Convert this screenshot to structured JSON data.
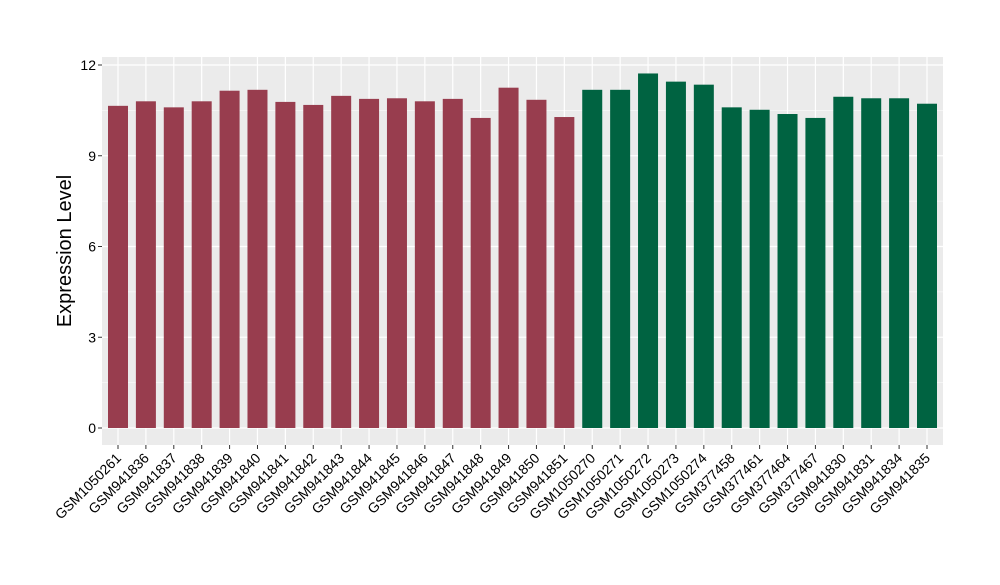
{
  "chart_data": {
    "type": "bar",
    "title": "",
    "xlabel": "",
    "ylabel": "Expression Level",
    "ylim": [
      0,
      12.3
    ],
    "yticks": [
      0,
      3,
      6,
      9,
      12
    ],
    "grid": true,
    "legend": "none",
    "colors": {
      "panel": "#ebebeb",
      "grid": "#ffffff",
      "group1": "#983d4e",
      "group2": "#006341",
      "axis_text": "#000000"
    },
    "categories": [
      "GSM1050261",
      "GSM941836",
      "GSM941837",
      "GSM941838",
      "GSM941839",
      "GSM941840",
      "GSM941841",
      "GSM941842",
      "GSM941843",
      "GSM941844",
      "GSM941845",
      "GSM941846",
      "GSM941847",
      "GSM941848",
      "GSM941849",
      "GSM941850",
      "GSM941851",
      "GSM1050270",
      "GSM1050271",
      "GSM1050272",
      "GSM1050273",
      "GSM1050274",
      "GSM377458",
      "GSM377461",
      "GSM377464",
      "GSM377467",
      "GSM941830",
      "GSM941831",
      "GSM941834",
      "GSM941835"
    ],
    "values": [
      10.65,
      10.8,
      10.6,
      10.8,
      11.15,
      11.18,
      10.78,
      10.68,
      10.98,
      10.88,
      10.9,
      10.8,
      10.88,
      10.25,
      11.25,
      10.85,
      10.28,
      11.18,
      11.18,
      11.72,
      11.45,
      11.35,
      10.6,
      10.52,
      10.38,
      10.25,
      10.95,
      10.9,
      10.9,
      10.72
    ],
    "groups": [
      1,
      1,
      1,
      1,
      1,
      1,
      1,
      1,
      1,
      1,
      1,
      1,
      1,
      1,
      1,
      1,
      1,
      2,
      2,
      2,
      2,
      2,
      2,
      2,
      2,
      2,
      2,
      2,
      2,
      2
    ]
  }
}
